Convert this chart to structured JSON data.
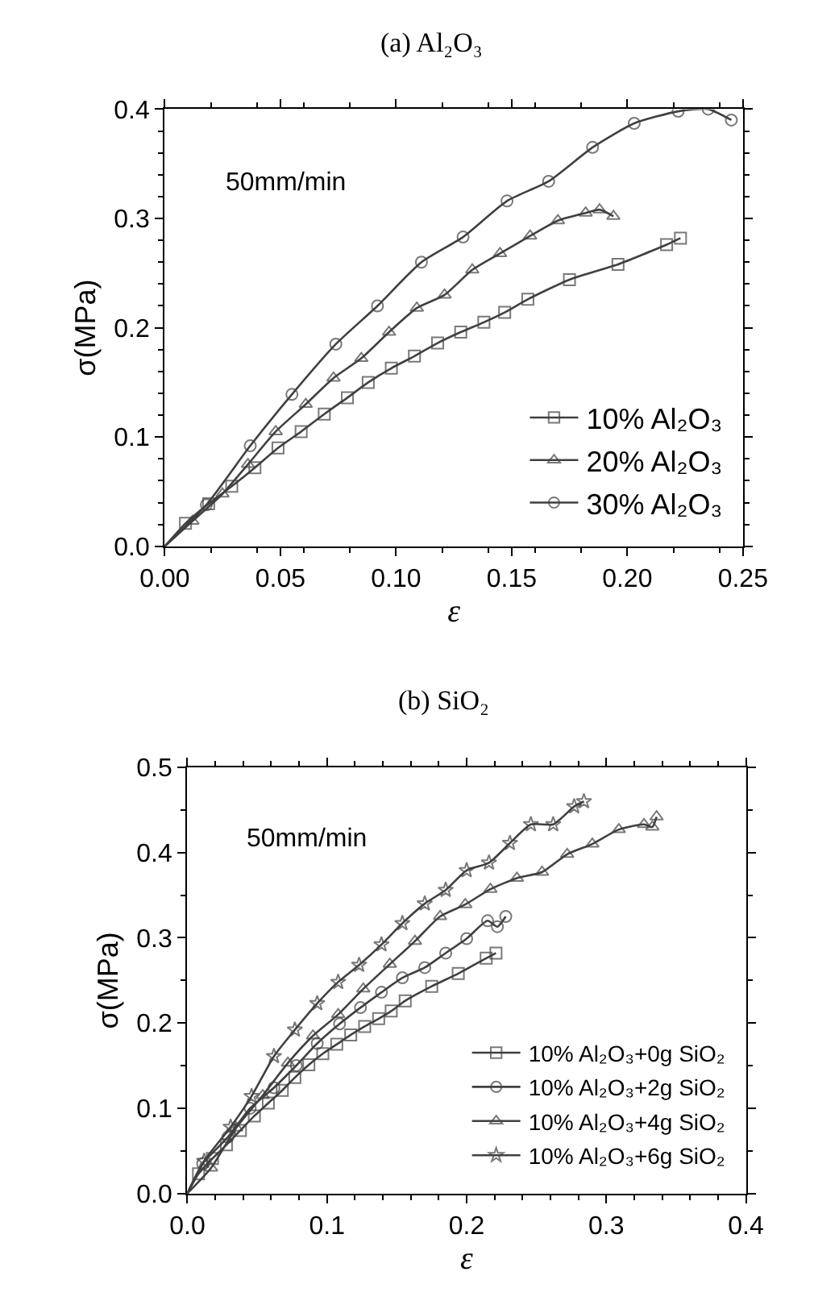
{
  "chart_data": [
    {
      "type": "line",
      "title": "(a) Al₂O₃",
      "xlabel": "ε",
      "ylabel": "σ(MPa)",
      "annotations": [
        "50mm/min"
      ],
      "legend": "bottom right",
      "line_style": "solid",
      "xlim": [
        0,
        0.25
      ],
      "xticks": [
        {
          "value": 0,
          "label": "0.00"
        },
        0.05,
        {
          "value": 0.1,
          "label": "0.10"
        },
        0.15,
        {
          "value": 0.2,
          "label": "0.20"
        },
        0.25
      ],
      "ylim": [
        0,
        0.4
      ],
      "yticks": [
        {
          "value": 0,
          "label": "0.0"
        },
        0.1,
        0.2,
        0.3,
        0.4
      ],
      "series": [
        {
          "name": "10% Al₂O₃",
          "color": "#404040",
          "marker": "square",
          "x": [
            0,
            0.009,
            0.019,
            0.029,
            0.039,
            0.049,
            0.059,
            0.069,
            0.079,
            0.088,
            0.098,
            0.108,
            0.118,
            0.128,
            0.138,
            0.147,
            0.157,
            0.175,
            0.196,
            0.217,
            0.223
          ],
          "values": [
            0,
            0.021,
            0.039,
            0.055,
            0.072,
            0.09,
            0.105,
            0.121,
            0.136,
            0.15,
            0.163,
            0.174,
            0.186,
            0.196,
            0.205,
            0.214,
            0.226,
            0.244,
            0.258,
            0.276,
            0.282
          ]
        },
        {
          "name": "20% Al₂O₃",
          "color": "#404040",
          "marker": "triangle",
          "x": [
            0,
            0.012,
            0.025,
            0.036,
            0.048,
            0.061,
            0.073,
            0.085,
            0.097,
            0.109,
            0.121,
            0.133,
            0.145,
            0.158,
            0.17,
            0.182,
            0.188,
            0.194
          ],
          "values": [
            0,
            0.023,
            0.048,
            0.075,
            0.105,
            0.13,
            0.154,
            0.172,
            0.196,
            0.218,
            0.23,
            0.253,
            0.268,
            0.284,
            0.298,
            0.305,
            0.308,
            0.302
          ]
        },
        {
          "name": "30% Al₂O₃",
          "color": "#404040",
          "marker": "circle",
          "x": [
            0,
            0.018,
            0.037,
            0.055,
            0.074,
            0.092,
            0.111,
            0.129,
            0.148,
            0.166,
            0.185,
            0.203,
            0.222,
            0.235,
            0.245
          ],
          "values": [
            0,
            0.038,
            0.092,
            0.139,
            0.185,
            0.22,
            0.26,
            0.283,
            0.316,
            0.334,
            0.365,
            0.387,
            0.398,
            0.4,
            0.39
          ]
        }
      ]
    },
    {
      "type": "line",
      "title": "(b) SiO₂",
      "xlabel": "ε",
      "ylabel": "σ(MPa)",
      "annotations": [
        "50mm/min"
      ],
      "legend": "bottom right",
      "line_style": "solid",
      "xlim": [
        0,
        0.4
      ],
      "xticks": [
        {
          "value": 0,
          "label": "0.0"
        },
        0.1,
        0.2,
        0.3,
        0.4
      ],
      "ylim": [
        0,
        0.5
      ],
      "yticks": [
        {
          "value": 0,
          "label": "0.0"
        },
        0.1,
        0.2,
        0.3,
        0.4,
        0.5
      ],
      "series": [
        {
          "name": "10% Al₂O₃+0g SiO₂",
          "color": "#404040",
          "marker": "square",
          "x": [
            0,
            0.008,
            0.018,
            0.028,
            0.038,
            0.048,
            0.058,
            0.068,
            0.077,
            0.087,
            0.097,
            0.107,
            0.117,
            0.127,
            0.137,
            0.146,
            0.156,
            0.175,
            0.194,
            0.214,
            0.221
          ],
          "values": [
            0,
            0.023,
            0.041,
            0.057,
            0.074,
            0.091,
            0.106,
            0.121,
            0.136,
            0.151,
            0.164,
            0.175,
            0.186,
            0.196,
            0.205,
            0.214,
            0.226,
            0.243,
            0.258,
            0.276,
            0.282
          ]
        },
        {
          "name": "10% Al₂O₃+2g SiO₂",
          "color": "#404040",
          "marker": "circle",
          "x": [
            0,
            0.011,
            0.029,
            0.045,
            0.062,
            0.078,
            0.093,
            0.109,
            0.124,
            0.139,
            0.154,
            0.17,
            0.185,
            0.2,
            0.215,
            0.222,
            0.228
          ],
          "values": [
            0,
            0.035,
            0.066,
            0.1,
            0.124,
            0.15,
            0.176,
            0.199,
            0.218,
            0.236,
            0.253,
            0.265,
            0.282,
            0.299,
            0.32,
            0.313,
            0.325
          ]
        },
        {
          "name": "10% Al₂O₃+4g SiO₂",
          "color": "#404040",
          "marker": "triangle",
          "x": [
            0,
            0.017,
            0.035,
            0.054,
            0.072,
            0.09,
            0.108,
            0.126,
            0.145,
            0.163,
            0.181,
            0.199,
            0.217,
            0.236,
            0.254,
            0.272,
            0.29,
            0.309,
            0.327,
            0.333,
            0.336
          ],
          "values": [
            0,
            0.03,
            0.077,
            0.115,
            0.153,
            0.185,
            0.21,
            0.24,
            0.269,
            0.296,
            0.325,
            0.339,
            0.357,
            0.37,
            0.377,
            0.398,
            0.41,
            0.427,
            0.433,
            0.43,
            0.442
          ]
        },
        {
          "name": "10% Al₂O₃+6g SiO₂",
          "color": "#404040",
          "marker": "star",
          "x": [
            0,
            0.012,
            0.031,
            0.046,
            0.062,
            0.077,
            0.093,
            0.108,
            0.123,
            0.139,
            0.154,
            0.17,
            0.185,
            0.2,
            0.216,
            0.231,
            0.246,
            0.262,
            0.277,
            0.284
          ],
          "values": [
            0,
            0.038,
            0.078,
            0.114,
            0.161,
            0.192,
            0.223,
            0.248,
            0.268,
            0.292,
            0.317,
            0.34,
            0.356,
            0.379,
            0.388,
            0.411,
            0.433,
            0.433,
            0.454,
            0.46
          ]
        }
      ]
    }
  ]
}
